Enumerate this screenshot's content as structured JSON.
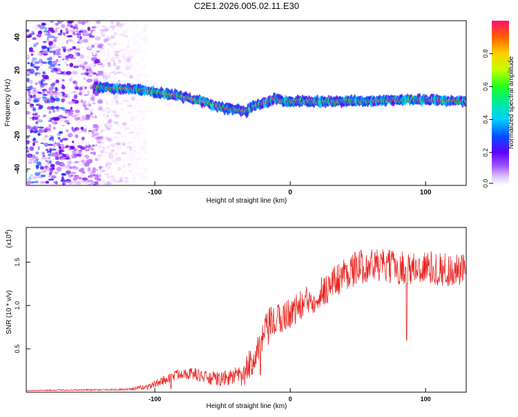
{
  "title": "C2E1.2026.005.02.11.E30",
  "chart_data": [
    {
      "type": "heatmap",
      "xlabel": "Height of straight line (km)",
      "ylabel": "Frequency (Hz)",
      "xlim": [
        -195,
        130
      ],
      "ylim": [
        -50,
        50
      ],
      "xticks": [
        -100,
        0,
        100
      ],
      "yticks": [
        -40,
        -20,
        0,
        20,
        40
      ],
      "colorbar": {
        "label": "Normalized spectral amplitude",
        "range": [
          0,
          1
        ],
        "ticks": [
          "0.0",
          "0.2",
          "0.4",
          "0.6",
          "0.8"
        ],
        "colors": [
          "#f4e6ff",
          "#c070ff",
          "#6a00f0",
          "#0040ff",
          "#00c8ff",
          "#00e0a0",
          "#20f020",
          "#a0f000",
          "#ffe000",
          "#ff9000",
          "#ff2020",
          "#ff1060"
        ]
      },
      "ridge": {
        "x": [
          -145,
          -130,
          -110,
          -95,
          -80,
          -65,
          -50,
          -40,
          -32,
          -28,
          -20,
          -15,
          -12,
          -5,
          0,
          20,
          40,
          60,
          80,
          100,
          130
        ],
        "y": [
          10,
          9,
          8,
          6,
          4,
          1,
          -3,
          -4,
          -5,
          -2,
          0,
          1,
          3,
          1,
          1,
          1,
          1,
          1,
          2,
          2,
          1
        ]
      },
      "noise_region_x": [
        -195,
        -110
      ]
    },
    {
      "type": "line",
      "xlabel": "Height of straight line (km)",
      "ylabel": "SNR (10 * v/v)",
      "exponent_label": "(x10",
      "exponent_power": "4",
      "exponent_close": ")",
      "xlim": [
        -195,
        130
      ],
      "ylim": [
        0,
        1.9
      ],
      "xticks": [
        -100,
        0,
        100
      ],
      "yticks": [
        "0.5",
        "1.0",
        "1.5"
      ],
      "color": "#e8201c",
      "envelope": {
        "x": [
          -195,
          -120,
          -105,
          -95,
          -80,
          -70,
          -60,
          -50,
          -40,
          -35,
          -30,
          -25,
          -20,
          -15,
          -10,
          -5,
          0,
          10,
          20,
          30,
          40,
          50,
          60,
          70,
          80,
          90,
          100,
          110,
          120,
          130
        ],
        "y": [
          0.02,
          0.03,
          0.06,
          0.12,
          0.22,
          0.2,
          0.15,
          0.14,
          0.18,
          0.15,
          0.3,
          0.45,
          0.6,
          0.75,
          0.8,
          0.85,
          0.9,
          1.0,
          1.1,
          1.22,
          1.35,
          1.42,
          1.45,
          1.43,
          1.42,
          1.4,
          1.42,
          1.4,
          1.38,
          1.38
        ]
      },
      "noise_amplitude": {
        "x": [
          -195,
          -120,
          -90,
          -60,
          -40,
          -30,
          -20,
          0,
          40,
          130
        ],
        "y": [
          0.005,
          0.01,
          0.06,
          0.08,
          0.1,
          0.18,
          0.22,
          0.18,
          0.2,
          0.2
        ]
      },
      "dips": [
        {
          "x": 86,
          "y": 0.6
        },
        {
          "x": -88,
          "y": 0.04
        },
        {
          "x": -22,
          "y": 0.2
        }
      ]
    }
  ]
}
